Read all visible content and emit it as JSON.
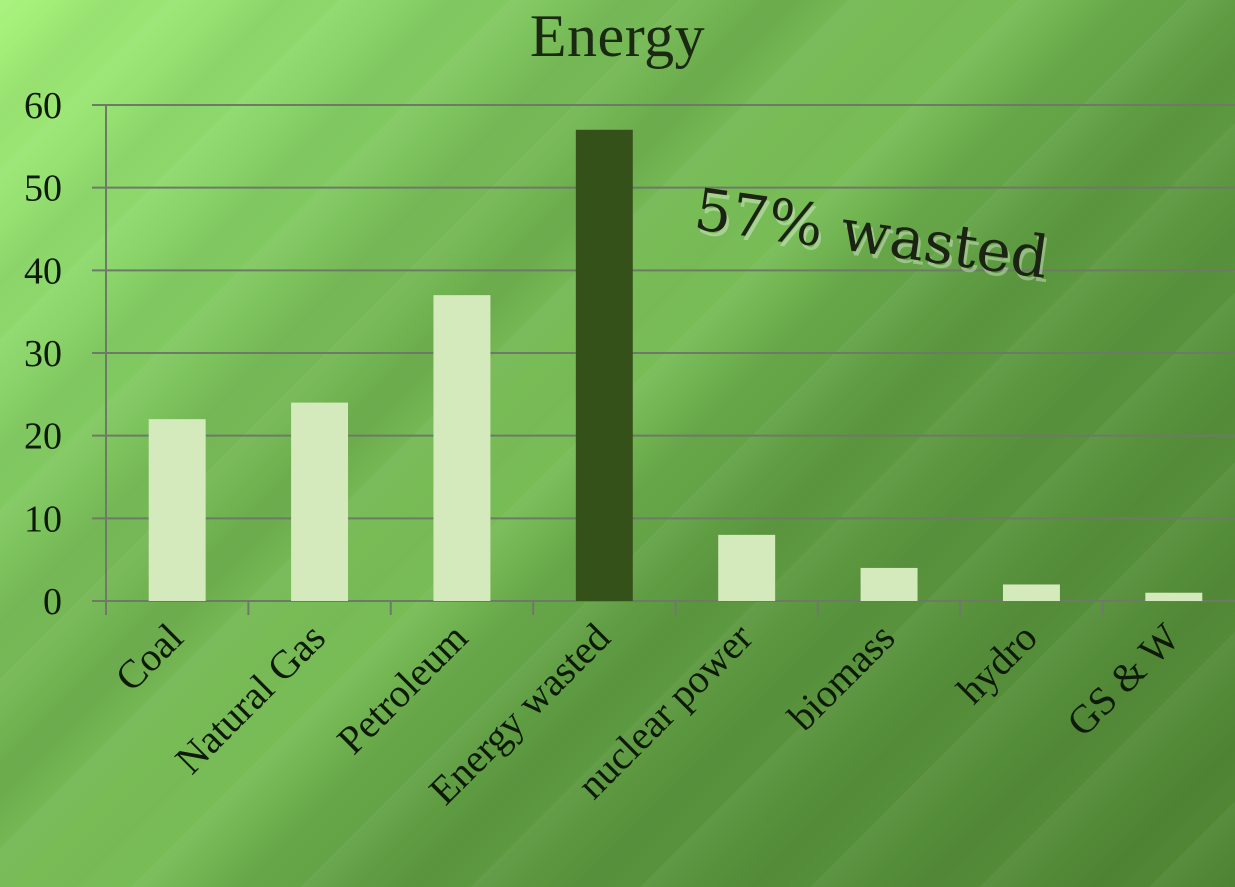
{
  "colors": {
    "bar": "#d4eabc",
    "highlight_bar": "#35511a",
    "gridline": "#6e7a68",
    "text": "#0e1a08"
  },
  "annotation": "57% wasted",
  "chart_data": {
    "type": "bar",
    "title": "Energy",
    "xlabel": "",
    "ylabel": "",
    "categories": [
      "Coal",
      "Natural Gas",
      "Petroleum",
      "Energy wasted",
      "nuclear power",
      "biomass",
      "hydro",
      "GS & W"
    ],
    "values": [
      22,
      24,
      37,
      57,
      8,
      4,
      2,
      1
    ],
    "highlight_category": "Energy wasted",
    "ylim": [
      0,
      60
    ],
    "yticks": [
      0,
      10,
      20,
      30,
      40,
      50,
      60
    ],
    "grid": true,
    "legend": "none"
  }
}
